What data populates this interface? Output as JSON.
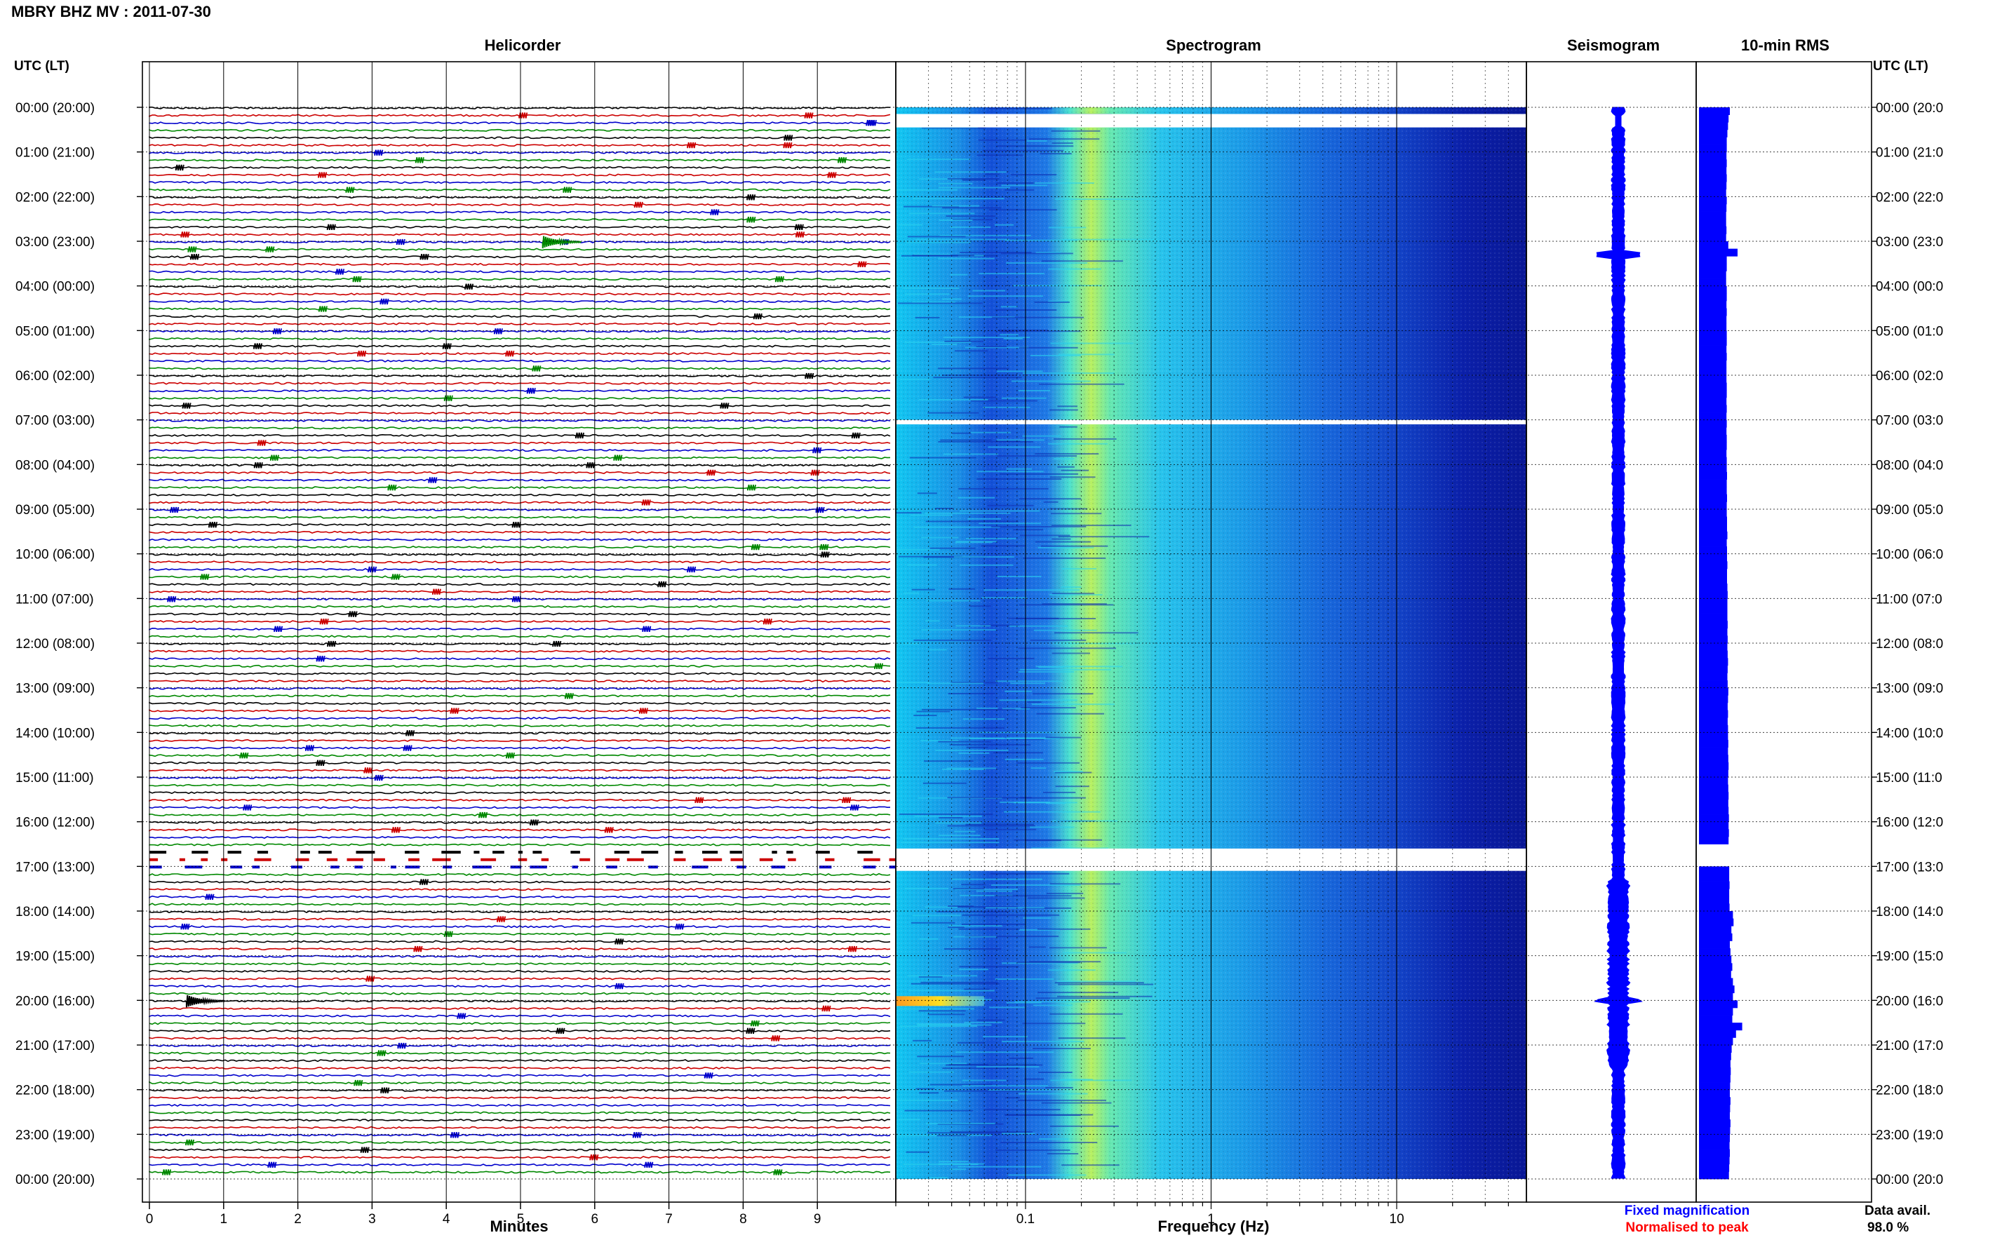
{
  "page_title": "MBRY BHZ MV : 2011-07-30",
  "panel_titles": {
    "helicorder": "Helicorder",
    "spectrogram": "Spectrogram",
    "seismogram": "Seismogram",
    "rms": "10-min RMS"
  },
  "axis_labels": {
    "left_time": "UTC (LT)",
    "right_time": "UTC (LT)",
    "helicorder_x": "Minutes",
    "spectrogram_x": "Frequency (Hz)"
  },
  "time_ticks": [
    "00:00 (20:00)",
    "01:00 (21:00)",
    "02:00 (22:00)",
    "03:00 (23:00)",
    "04:00 (00:00)",
    "05:00 (01:00)",
    "06:00 (02:00)",
    "07:00 (03:00)",
    "08:00 (04:00)",
    "09:00 (05:00)",
    "10:00 (06:00)",
    "11:00 (07:00)",
    "12:00 (08:00)",
    "13:00 (09:00)",
    "14:00 (10:00)",
    "15:00 (11:00)",
    "16:00 (12:00)",
    "17:00 (13:00)",
    "18:00 (14:00)",
    "19:00 (15:00)",
    "20:00 (16:00)",
    "21:00 (17:00)",
    "22:00 (18:00)",
    "23:00 (19:00)",
    "00:00 (20:00)"
  ],
  "right_time_ticks": [
    "00:00 (20:0",
    "01:00 (21:0",
    "02:00 (22:0",
    "03:00 (23:0",
    "04:00 (00:0",
    "05:00 (01:0",
    "06:00 (02:0",
    "07:00 (03:0",
    "08:00 (04:0",
    "09:00 (05:0",
    "10:00 (06:0",
    "11:00 (07:0",
    "12:00 (08:0",
    "13:00 (09:0",
    "14:00 (10:0",
    "15:00 (11:0",
    "16:00 (12:0",
    "17:00 (13:0",
    "18:00 (14:0",
    "19:00 (15:0",
    "20:00 (16:0",
    "21:00 (17:0",
    "22:00 (18:0",
    "23:00 (19:0",
    "00:00 (20:0"
  ],
  "legend": {
    "fixed": "Fixed magnification",
    "normalised": "Normalised to peak",
    "fixed_color": "#0000ff",
    "normalised_color": "#ff0000"
  },
  "data_avail": {
    "label": "Data avail.",
    "value": "98.0 %"
  },
  "chart_data": [
    {
      "type": "line",
      "name": "helicorder",
      "title": "Helicorder",
      "xlabel": "Minutes",
      "ylabel": "UTC (LT)",
      "x_ticks": [
        "0",
        "1",
        "2",
        "3",
        "4",
        "5",
        "6",
        "7",
        "8",
        "9"
      ],
      "xlim": [
        0,
        10
      ],
      "rows_per_hour": 6,
      "trace_colors": [
        "#000000",
        "#cc0000",
        "#0000cc",
        "#008800"
      ],
      "gaps": [
        {
          "start_hour": 16.6,
          "end_hour": 17.1
        }
      ],
      "events": [
        {
          "hour": 3.05,
          "minute": 5.3,
          "color": "#008800"
        },
        {
          "hour": 20.0,
          "minute": 0.5,
          "color": "#000000"
        }
      ]
    },
    {
      "type": "heatmap",
      "name": "spectrogram",
      "title": "Spectrogram",
      "xlabel": "Frequency (Hz)",
      "x_scale": "log",
      "x_ticks": [
        "0.1",
        "1",
        "10"
      ],
      "xlim": [
        0.02,
        50
      ],
      "colormap": "jet",
      "dominant_band_hz": [
        0.2,
        0.6
      ],
      "gaps": [
        {
          "start_hour": 0.15,
          "end_hour": 0.45
        },
        {
          "start_hour": 7.0,
          "end_hour": 7.1
        },
        {
          "start_hour": 16.6,
          "end_hour": 17.1
        }
      ],
      "event": {
        "hour": 20.0,
        "freq_hz": [
          0.02,
          0.06
        ]
      }
    },
    {
      "type": "line",
      "name": "seismogram",
      "title": "Seismogram",
      "amplitude_color": "#0000ff",
      "spike_hours": [
        3.3,
        20.0
      ]
    },
    {
      "type": "bar",
      "name": "rms",
      "title": "10-min RMS",
      "orientation": "horizontal",
      "bar_color": "#0000ff",
      "values": [
        1.0,
        0.96,
        0.94,
        0.92,
        0.9,
        0.9,
        0.89,
        0.9,
        0.89,
        0.9,
        0.89,
        0.88,
        0.9,
        0.89,
        0.88,
        0.88,
        0.89,
        0.88,
        0.95,
        1.25,
        0.9,
        0.9,
        0.88,
        0.88,
        0.9,
        0.9,
        0.89,
        0.9,
        0.89,
        0.89,
        0.9,
        0.9,
        0.89,
        0.9,
        0.89,
        0.89,
        0.89,
        0.9,
        0.9,
        0.89,
        0.9,
        0.89,
        0.9,
        0.89,
        0.9,
        0.9,
        0.89,
        0.9,
        0.9,
        0.91,
        0.9,
        0.9,
        0.91,
        0.9,
        0.9,
        0.91,
        0.91,
        0.92,
        0.9,
        0.91,
        0.91,
        0.92,
        0.91,
        0.91,
        0.92,
        0.93,
        0.92,
        0.92,
        0.92,
        0.93,
        0.92,
        0.93,
        0.92,
        0.93,
        0.94,
        0.93,
        0.92,
        0.93,
        0.95,
        0.94,
        0.93,
        0.94,
        0.93,
        0.94,
        0.94,
        0.95,
        0.94,
        0.95,
        0.96,
        0.95,
        0.94,
        0.95,
        0.96,
        0.95,
        0.96,
        0.97,
        0.96,
        0.97,
        0.96,
        0.98,
        0.97,
        0.99,
        0.98,
        0.98,
        0.99,
        0.98,
        0.98,
        0.99,
        1.1,
        1.12,
        1.05,
        1.08,
        1.0,
        1.02,
        1.05,
        1.08,
        1.04,
        1.1,
        1.15,
        1.1,
        1.25,
        1.1,
        1.08,
        1.4,
        1.2,
        1.1,
        1.06,
        1.04,
        1.02,
        1.03,
        1.02,
        1.01,
        1.0,
        1.02,
        1.01,
        1.0,
        1.02,
        1.01,
        1.0,
        0.99,
        1.0,
        0.99,
        0.98,
        0.97
      ],
      "missing_indices": [
        99,
        100,
        101
      ]
    }
  ]
}
